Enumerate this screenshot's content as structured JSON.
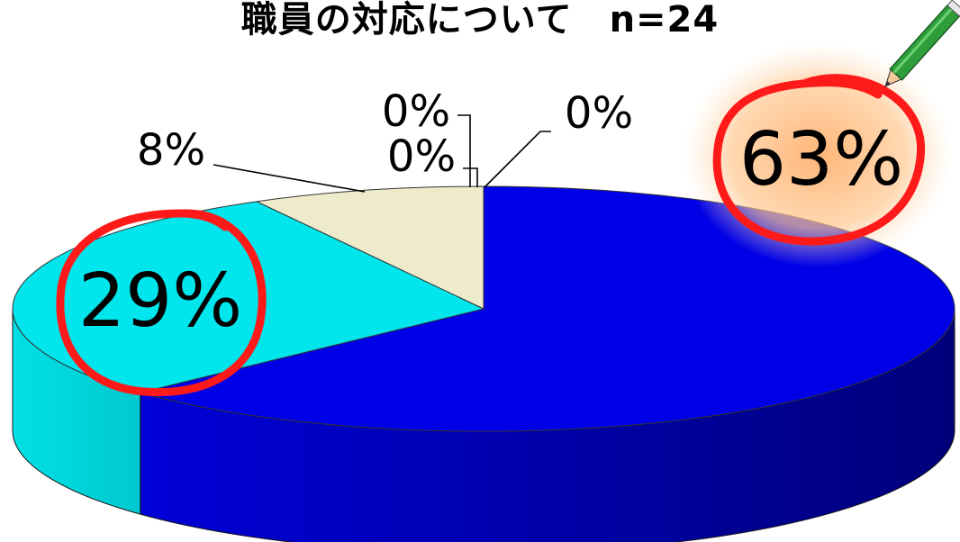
{
  "chart_data": {
    "type": "pie",
    "title": "職員の対応について　n=24",
    "slices": [
      {
        "label": "63%",
        "value": 63,
        "color": "#0000E6"
      },
      {
        "label": "29%",
        "value": 29,
        "color": "#00E6EC"
      },
      {
        "label": "8%",
        "value": 8,
        "color": "#EEEBCB"
      },
      {
        "label": "0%",
        "value": 0,
        "color": "#CCCCCC"
      },
      {
        "label": "0%",
        "value": 0,
        "color": "#CCCCCC"
      },
      {
        "label": "0%",
        "value": 0,
        "color": "#CCCCCC"
      }
    ],
    "highlight_color": "#FF1A1A",
    "style": "3d-exploded-none"
  }
}
